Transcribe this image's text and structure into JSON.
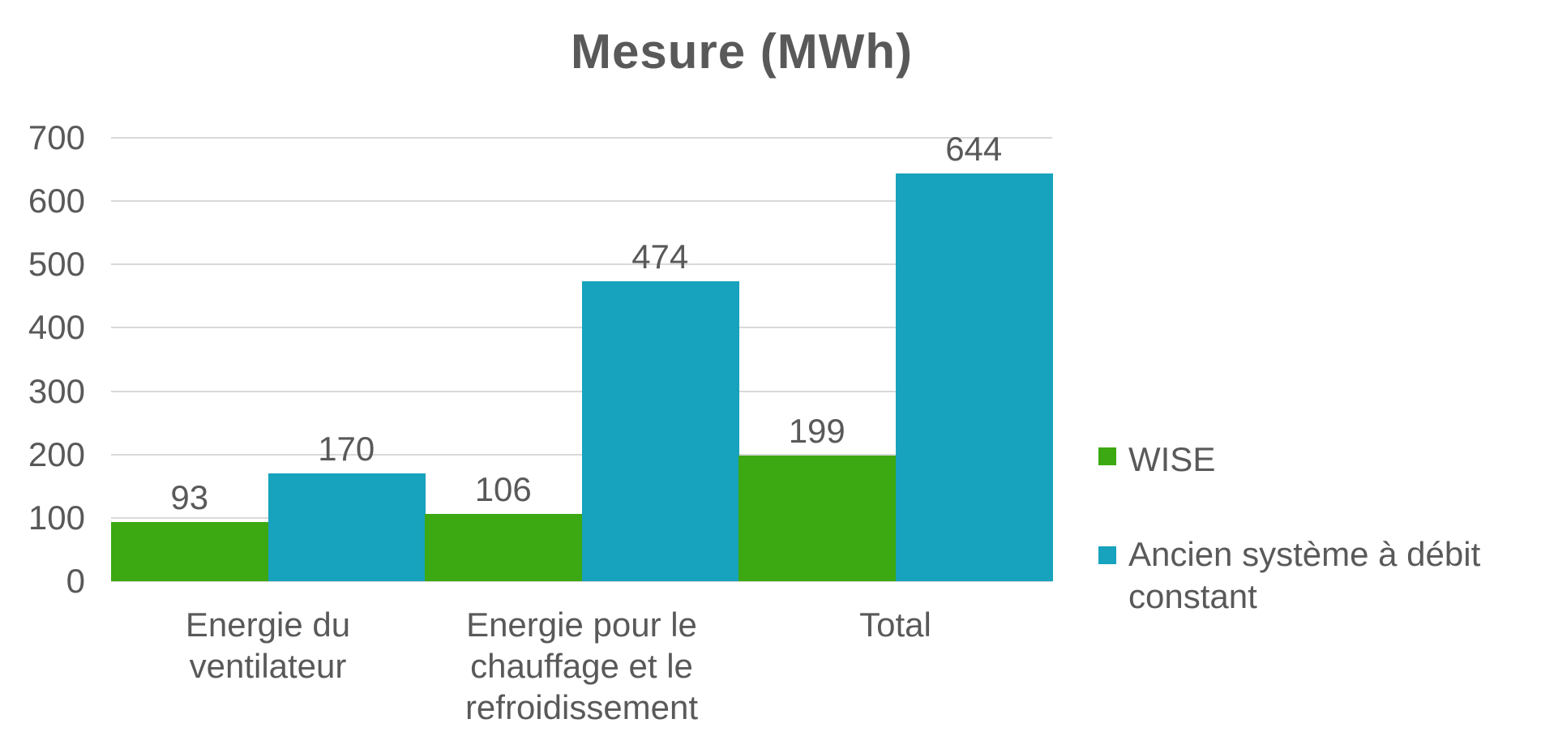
{
  "chart_data": {
    "type": "bar",
    "title": "Mesure (MWh)",
    "categories": [
      "Energie du ventilateur",
      "Energie pour le chauffage et le refroidissement",
      "Total"
    ],
    "series": [
      {
        "name": "WISE",
        "color": "#3CA812",
        "values": [
          93,
          106,
          199
        ]
      },
      {
        "name": "Ancien système à débit constant",
        "color": "#17A2BD",
        "values": [
          170,
          474,
          644
        ]
      }
    ],
    "ylabel": "",
    "xlabel": "",
    "ylim": [
      0,
      700
    ],
    "ytick_interval": 100,
    "yticks": [
      "700",
      "600",
      "500",
      "400",
      "300",
      "200",
      "100",
      "0"
    ],
    "grid": true,
    "gridline_color": "#D9D9D9",
    "text_color": "#595959",
    "legend_position": "right",
    "bar_gap": 0,
    "data_labels_shown": true
  }
}
